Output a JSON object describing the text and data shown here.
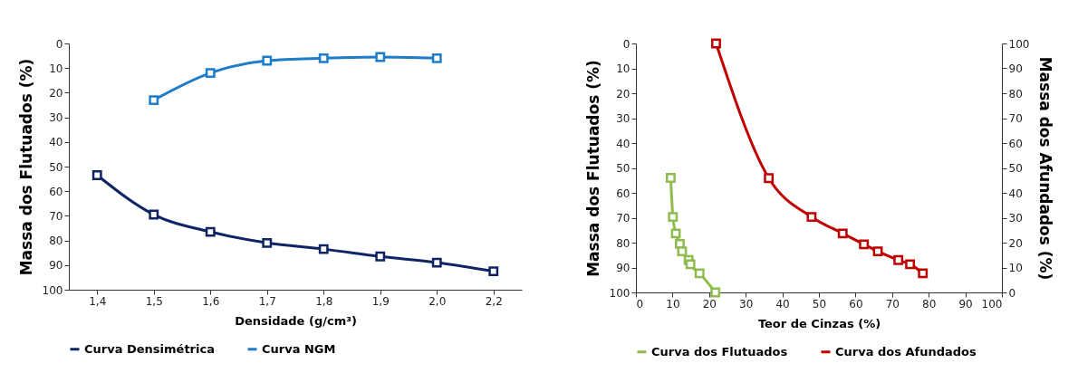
{
  "chart_data": [
    {
      "type": "line",
      "xlabel": "Densidade (g/cm³)",
      "ylabel": "Massa dos Flutuados (%)",
      "categories": [
        "1,4",
        "1,5",
        "1,6",
        "1,7",
        "1,8",
        "1,9",
        "2,0",
        "2,2"
      ],
      "series": [
        {
          "name": "Curva Densimétrica",
          "color": "#0f2465",
          "values": [
            53.5,
            69.5,
            76.5,
            81,
            83.5,
            86.5,
            89,
            92.5
          ]
        },
        {
          "name": "Curva NGM",
          "color": "#1f7cc8",
          "values": [
            null,
            23,
            12,
            7,
            6,
            5.5,
            6,
            null
          ]
        }
      ],
      "ylim": [
        100,
        0
      ],
      "yticks": [
        0,
        10,
        20,
        30,
        40,
        50,
        60,
        70,
        80,
        90,
        100
      ],
      "grid": false,
      "legend": "bottom",
      "marker": "square",
      "line_style": "solid"
    },
    {
      "type": "line",
      "xlabel": "Teor de Cinzas (%)",
      "ylabel": "Massa dos Flutuados (%)",
      "y2label": "Massa dos Afundados (%)",
      "series": [
        {
          "name": "Curva dos Flutuados",
          "color": "#8fbc4f",
          "x": [
            9.5,
            10.1,
            10.9,
            12.0,
            12.6,
            14.4,
            14.9,
            17.4,
            21.7
          ],
          "values": [
            54,
            69.7,
            76.3,
            80.5,
            83.5,
            87,
            88.7,
            92.3,
            100
          ]
        },
        {
          "name": "Curva dos Afundados",
          "color": "#c00000",
          "axis": "y2",
          "x": [
            21.9,
            36.3,
            48.0,
            56.5,
            62.3,
            66.1,
            71.7,
            74.9,
            78.4
          ],
          "values": [
            100,
            45.9,
            30.3,
            23.7,
            19.3,
            16.5,
            13.0,
            11.3,
            7.7
          ]
        }
      ],
      "xlim": [
        0,
        100
      ],
      "xticks": [
        0,
        10,
        20,
        30,
        40,
        50,
        60,
        70,
        80,
        90,
        100
      ],
      "ylim": [
        100,
        0
      ],
      "yticks": [
        0,
        10,
        20,
        30,
        40,
        50,
        60,
        70,
        80,
        90,
        100
      ],
      "y2lim": [
        0,
        100
      ],
      "y2ticks": [
        0,
        10,
        20,
        30,
        40,
        50,
        60,
        70,
        80,
        90,
        100
      ],
      "grid": false,
      "legend": "bottom",
      "marker": "square",
      "line_style": "solid"
    }
  ]
}
